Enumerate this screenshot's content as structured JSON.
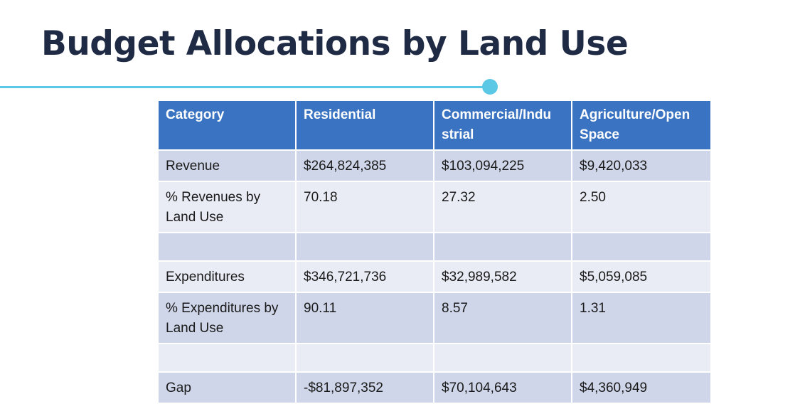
{
  "slide": {
    "title": "Budget Allocations by Land Use"
  },
  "colors": {
    "accent_line": "#5bc8e6",
    "header_bg": "#3a73c1",
    "row_dark": "#cfd6e9",
    "row_light": "#e9ecf5",
    "title_text": "#1f2a44"
  },
  "table": {
    "headers": [
      "Category",
      "Residential",
      "Commercial/Indu strial",
      "Agriculture/Open Space"
    ],
    "rows": [
      [
        "Revenue",
        "$264,824,385",
        "$103,094,225",
        "$9,420,033"
      ],
      [
        "% Revenues by Land Use",
        "70.18",
        "27.32",
        "2.50"
      ],
      [
        "",
        "",
        "",
        ""
      ],
      [
        "Expenditures",
        "$346,721,736",
        "$32,989,582",
        "$5,059,085"
      ],
      [
        "% Expenditures by Land Use",
        "90.11",
        "8.57",
        "1.31"
      ],
      [
        "",
        "",
        "",
        ""
      ],
      [
        "Gap",
        "-$81,897,352",
        "$70,104,643",
        "$4,360,949"
      ]
    ]
  }
}
